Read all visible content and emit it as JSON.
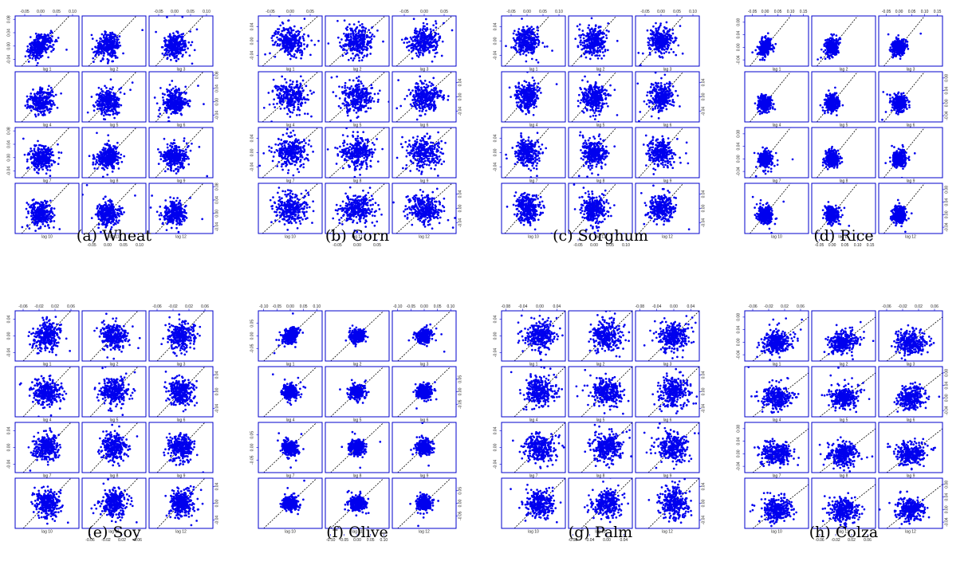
{
  "figure": {
    "lag_labels": [
      "lag 1",
      "lag 2",
      "lag 3",
      "lag 4",
      "lag 5",
      "lag 6",
      "lag 7",
      "lag 8",
      "lag 9",
      "lag 10",
      "lag 11",
      "lag 12"
    ],
    "colors": {
      "points": "#0000ee",
      "frame": "#0000cc",
      "diagonal": "#000000"
    },
    "point_marker": "filled-circle",
    "diagonal_style": "dashed y = x reference line"
  },
  "chart_data": [
    {
      "type": "scatter",
      "title": "(a) Wheat",
      "caption": "(a) Wheat",
      "layout": "lag-plot matrix, 4 rows x 3 columns",
      "panels": [
        "lag 1",
        "lag 2",
        "lag 3",
        "lag 4",
        "lag 5",
        "lag 6",
        "lag 7",
        "lag 8",
        "lag 9",
        "lag 10",
        "lag 11",
        "lag 12"
      ],
      "x_ticks": [
        "-0.05",
        "0.00",
        "0.05",
        "0.10"
      ],
      "y_ticks": [
        "-0.04",
        "0.00",
        "0.04",
        "0.08"
      ],
      "xlim": [
        -0.08,
        0.12
      ],
      "ylim": [
        -0.06,
        0.09
      ],
      "spread": 0.018,
      "corr": 0.35
    },
    {
      "type": "scatter",
      "title": "(b) Corn",
      "caption": "(b) Corn",
      "layout": "lag-plot matrix, 4 rows x 3 columns",
      "panels": [
        "lag 1",
        "lag 2",
        "lag 3",
        "lag 4",
        "lag 5",
        "lag 6",
        "lag 7",
        "lag 8",
        "lag 9",
        "lag 10",
        "lag 11",
        "lag 12"
      ],
      "x_ticks": [
        "-0.05",
        "0.00",
        "0.05"
      ],
      "y_ticks": [
        "-0.04",
        "0.00",
        "0.04"
      ],
      "xlim": [
        -0.08,
        0.08
      ],
      "ylim": [
        -0.07,
        0.07
      ],
      "spread": 0.02,
      "corr": 0.05
    },
    {
      "type": "scatter",
      "title": "(c) Sorghum",
      "caption": "(c) Sorghum",
      "layout": "lag-plot matrix, 4 rows x 3 columns",
      "panels": [
        "lag 1",
        "lag 2",
        "lag 3",
        "lag 4",
        "lag 5",
        "lag 6",
        "lag 7",
        "lag 8",
        "lag 9",
        "lag 10",
        "lag 11",
        "lag 12"
      ],
      "x_ticks": [
        "-0.05",
        "0.00",
        "0.05",
        "0.10"
      ],
      "y_ticks": [
        "-0.04",
        "0.00",
        "0.04"
      ],
      "xlim": [
        -0.08,
        0.12
      ],
      "ylim": [
        -0.07,
        0.07
      ],
      "spread": 0.019,
      "corr": 0.05
    },
    {
      "type": "scatter",
      "title": "(d) Rice",
      "caption": "(d) Rice",
      "layout": "lag-plot matrix, 4 rows x 3 columns",
      "panels": [
        "lag 1",
        "lag 2",
        "lag 3",
        "lag 4",
        "lag 5",
        "lag 6",
        "lag 7",
        "lag 8",
        "lag 9",
        "lag 10",
        "lag 11",
        "lag 12"
      ],
      "x_ticks": [
        "-0.05",
        "0.00",
        "0.05",
        "0.10",
        "0.15"
      ],
      "y_ticks": [
        "-0.04",
        "0.00",
        "0.04",
        "0.08"
      ],
      "xlim": [
        -0.08,
        0.17
      ],
      "ylim": [
        -0.06,
        0.1
      ],
      "spread": 0.013,
      "corr": 0.3
    },
    {
      "type": "scatter",
      "title": "(e) Soy",
      "caption": "(e) Soy",
      "layout": "lag-plot matrix, 4 rows x 3 columns",
      "panels": [
        "lag 1",
        "lag 2",
        "lag 3",
        "lag 4",
        "lag 5",
        "lag 6",
        "lag 7",
        "lag 8",
        "lag 9",
        "lag 10",
        "lag 11",
        "lag 12"
      ],
      "x_ticks": [
        "-0.06",
        "-0.02",
        "0.02",
        "0.06"
      ],
      "y_ticks": [
        "-0.04",
        "0.00",
        "0.04"
      ],
      "xlim": [
        -0.08,
        0.08
      ],
      "ylim": [
        -0.06,
        0.06
      ],
      "spread": 0.016,
      "corr": 0.1
    },
    {
      "type": "scatter",
      "title": "(f) Olive",
      "caption": "(f) Olive",
      "layout": "lag-plot matrix, 4 rows x 3 columns",
      "panels": [
        "lag 1",
        "lag 2",
        "lag 3",
        "lag 4",
        "lag 5",
        "lag 6",
        "lag 7",
        "lag 8",
        "lag 9",
        "lag 10",
        "lag 11",
        "lag 12"
      ],
      "x_ticks": [
        "-0.10",
        "-0.05",
        "0.00",
        "0.05",
        "0.10"
      ],
      "y_ticks": [
        "-0.05",
        "0.00",
        "0.05"
      ],
      "xlim": [
        -0.12,
        0.12
      ],
      "ylim": [
        -0.1,
        0.1
      ],
      "spread": 0.014,
      "corr": 0.3
    },
    {
      "type": "scatter",
      "title": "(g) Palm",
      "caption": "(g) Palm",
      "layout": "lag-plot matrix, 4 rows x 3 columns",
      "panels": [
        "lag 1",
        "lag 2",
        "lag 3",
        "lag 4",
        "lag 5",
        "lag 6",
        "lag 7",
        "lag 8",
        "lag 9",
        "lag 10",
        "lag 11",
        "lag 12"
      ],
      "x_ticks": [
        "-0.08",
        "-0.04",
        "0.00",
        "0.04"
      ],
      "y_ticks": [
        "-0.04",
        "0.00",
        "0.04"
      ],
      "xlim": [
        -0.09,
        0.06
      ],
      "ylim": [
        -0.06,
        0.06
      ],
      "spread": 0.017,
      "corr": 0.1
    },
    {
      "type": "scatter",
      "title": "(h) Colza",
      "caption": "(h) Colza",
      "layout": "lag-plot matrix, 4 rows x 3 columns",
      "panels": [
        "lag 1",
        "lag 2",
        "lag 3",
        "lag 4",
        "lag 5",
        "lag 6",
        "lag 7",
        "lag 8",
        "lag 9",
        "lag 10",
        "lag 11",
        "lag 12"
      ],
      "x_ticks": [
        "-0.06",
        "-0.02",
        "0.02",
        "0.06"
      ],
      "y_ticks": [
        "-0.04",
        "0.00",
        "0.04",
        "0.08"
      ],
      "xlim": [
        -0.08,
        0.08
      ],
      "ylim": [
        -0.06,
        0.1
      ],
      "spread": 0.018,
      "corr": 0.15
    }
  ]
}
